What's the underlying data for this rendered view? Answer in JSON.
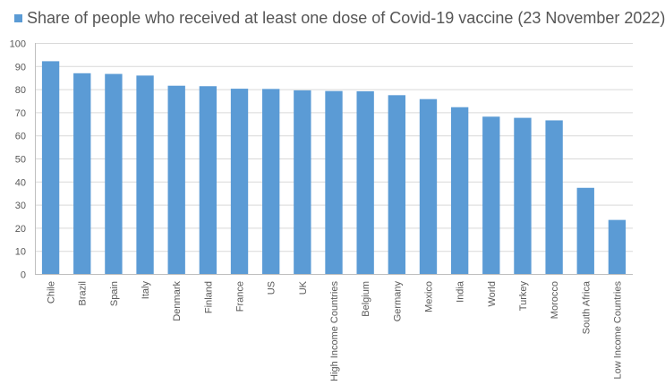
{
  "chart_data": {
    "type": "bar",
    "series": [
      {
        "name": "Share of people who received at least one dose of Covid-19 vaccine (23 November 2022)",
        "values": [
          92.1,
          86.9,
          86.6,
          85.9,
          81.5,
          81.3,
          80.2,
          80.1,
          79.5,
          79.2,
          79.1,
          77.4,
          75.7,
          72.2,
          68.1,
          67.6,
          66.5,
          37.3,
          23.4
        ]
      }
    ],
    "categories": [
      "Chile",
      "Brazil",
      "Spain",
      "Italy",
      "Denmark",
      "Finland",
      "France",
      "US",
      "UK",
      "High Income Countries",
      "Belgium",
      "Germany",
      "Mexico",
      "India",
      "World",
      "Turkey",
      "Morocco",
      "South Africa",
      "Low Income Countries"
    ],
    "ylim": [
      0,
      100
    ],
    "yticks": [
      0,
      10,
      20,
      30,
      40,
      50,
      60,
      70,
      80,
      90,
      100
    ],
    "grid": true,
    "legend_position": "top-left",
    "colors": {
      "bar": "#5b9bd5",
      "grid": "#d9d9d9",
      "axis": "#bfbfbf",
      "tick_text": "#595959",
      "legend_text": "#555555"
    }
  }
}
